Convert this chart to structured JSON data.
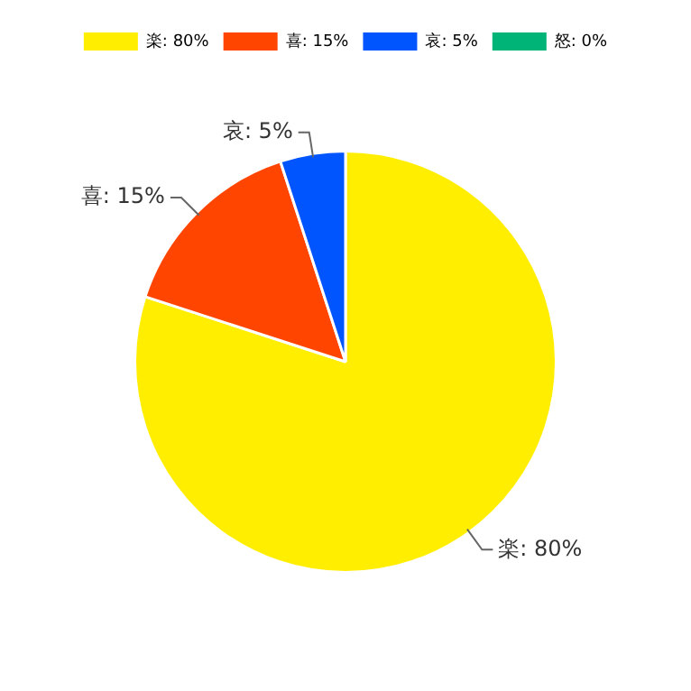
{
  "chart_data": {
    "type": "pie",
    "categories": [
      "楽",
      "喜",
      "哀",
      "怒"
    ],
    "values": [
      80,
      15,
      5,
      0
    ],
    "value_labels": [
      "80%",
      "15%",
      "5%",
      "0%"
    ],
    "colors": [
      "#ffee00",
      "#ff4500",
      "#0055ff",
      "#00b377"
    ],
    "legend": "top",
    "data_labels": true
  }
}
